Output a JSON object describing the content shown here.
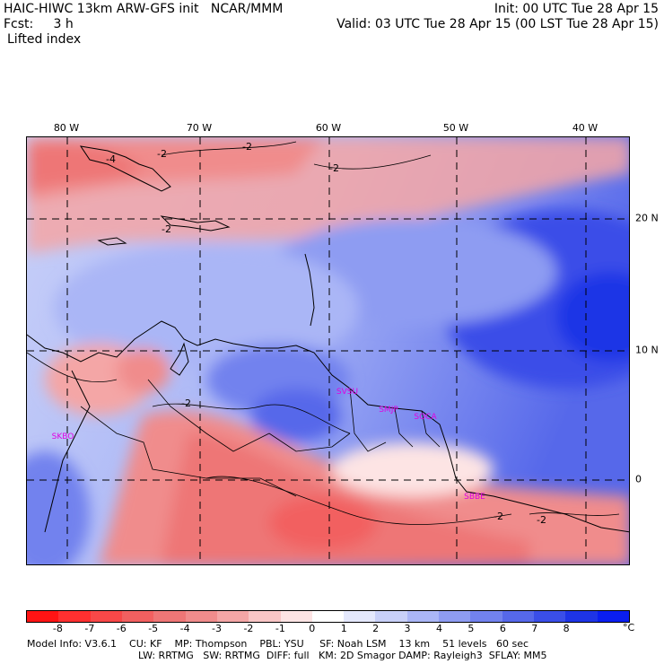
{
  "header": {
    "model_line": "HAIC-HIWC 13km ARW-GFS init   NCAR/MMM",
    "fcst_line": "Fcst:     3 h",
    "field_name": "Lifted index",
    "init_line": "Init: 00 UTC Tue 28 Apr 15",
    "valid_line": "Valid: 03 UTC Tue 28 Apr 15 (00 LST Tue 28 Apr 15)"
  },
  "map": {
    "lon_labels": [
      "80 W",
      "70 W",
      "60 W",
      "50 W",
      "40 W"
    ],
    "lat_labels": [
      "20 N",
      "10 N",
      "0"
    ],
    "contour_labels": [
      "-2",
      "-2",
      "-2",
      "-2",
      "-2",
      "-2",
      "-2",
      "-4"
    ],
    "stations": [
      "SKBO",
      "SVSU",
      "SMJP",
      "SOCA",
      "SBBE"
    ],
    "colors": {
      "negative_strong": "#ff1e1e",
      "negative_mid": "#f07474",
      "neutral": "#ffffff",
      "positive_mid": "#8c9cf0",
      "positive_strong": "#0a1ef0",
      "station_label": "#e000e0"
    }
  },
  "colorbar": {
    "labels": [
      "-8",
      "-7",
      "-6",
      "-5",
      "-4",
      "-3",
      "-2",
      "-1",
      "0",
      "1",
      "2",
      "3",
      "4",
      "5",
      "6",
      "7",
      "8"
    ],
    "unit": "°C",
    "colors": [
      "#ff1414",
      "#ff3030",
      "#f84848",
      "#f26060",
      "#ee7676",
      "#f08c8c",
      "#f4a6a6",
      "#f9c6c6",
      "#fde4e4",
      "#ffffff",
      "#e4e8fc",
      "#c8d0f8",
      "#aab6f6",
      "#8e9cf2",
      "#7282ee",
      "#5668ea",
      "#3a4ee8",
      "#1e34e6",
      "#0a1ef0"
    ]
  },
  "footer": {
    "line1": "Model Info: V3.6.1    CU: KF    MP: Thompson    PBL: YSU     SF: Noah LSM    13 km    51 levels   60 sec",
    "line2": "LW: RRTMG   SW: RRTMG  DIFF: full   KM: 2D Smagor DAMP: Rayleigh3  SFLAY: MM5"
  }
}
